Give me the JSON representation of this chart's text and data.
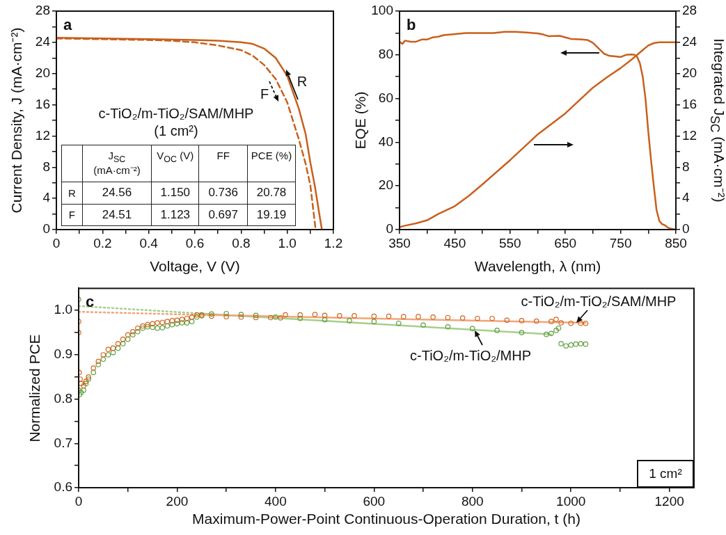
{
  "chart_data": [
    {
      "type": "line",
      "title": "a",
      "xlabel": "Voltage, V (V)",
      "ylabel": "Current Density, J (mA·cm⁻²)",
      "xlim": [
        0,
        1.2
      ],
      "xticks": [
        0,
        {
          "value": 0.1,
          "label": null
        },
        0.2,
        {
          "value": 0.3,
          "label": null
        },
        0.4,
        {
          "value": 0.5,
          "label": null
        },
        0.6,
        {
          "value": 0.7,
          "label": null
        },
        0.8,
        {
          "value": 0.9,
          "label": null
        },
        {
          "value": 1,
          "label": "1.0"
        },
        {
          "value": 1.1,
          "label": null
        },
        1.2
      ],
      "ylim": [
        0,
        28
      ],
      "yticks": [
        0,
        {
          "value": 2,
          "label": null
        },
        4,
        {
          "value": 6,
          "label": null
        },
        8,
        {
          "value": 10,
          "label": null
        },
        12,
        {
          "value": 14,
          "label": null
        },
        16,
        {
          "value": 18,
          "label": null
        },
        20,
        {
          "value": 22,
          "label": null
        },
        24,
        {
          "value": 26,
          "label": null
        },
        28
      ],
      "marker": "none",
      "annotations": [
        "c-TiO₂/m-TiO₂/SAM/MHP",
        "(1 cm²)",
        "J$_{SC}$ (mA·cm⁻²)",
        "V$_{OC}$ (V)",
        "FF",
        "PCE (%)",
        "R",
        "24.56",
        "1.150",
        "0.736",
        "20.78",
        "F",
        "24.51",
        "1.123",
        "0.697",
        "19.19"
      ],
      "series": [
        {
          "name": "R",
          "color": "#c8601c",
          "line_style": "solid",
          "x": [
            0,
            0.2,
            0.4,
            0.6,
            0.7,
            0.8,
            0.85,
            0.9,
            0.95,
            1.0,
            1.05,
            1.08,
            1.1,
            1.12,
            1.14,
            1.15
          ],
          "values": [
            24.6,
            24.5,
            24.4,
            24.3,
            24.2,
            24.0,
            23.8,
            23.2,
            22.0,
            19.7,
            15.5,
            12.2,
            8.6,
            5.5,
            1.8,
            0
          ]
        },
        {
          "name": "F",
          "color": "#c8601c",
          "line_style": "dashed",
          "x": [
            0,
            0.2,
            0.4,
            0.5,
            0.6,
            0.7,
            0.8,
            0.85,
            0.9,
            0.95,
            1.0,
            1.05,
            1.08,
            1.1,
            1.123
          ],
          "values": [
            24.5,
            24.4,
            24.3,
            24.2,
            24.0,
            23.6,
            23.0,
            22.3,
            21.1,
            19.3,
            16.3,
            11.6,
            8.4,
            5.7,
            0
          ]
        }
      ]
    },
    {
      "type": "line",
      "title": "b",
      "xlabel": "Wavelength, λ (nm)",
      "ylabel": "EQE (%)",
      "y2label": "Integrated J$_{SC}$ (mA·cm⁻²)",
      "xlim": [
        350,
        850
      ],
      "xticks": [
        350,
        {
          "value": 400,
          "label": null
        },
        450,
        {
          "value": 500,
          "label": null
        },
        550,
        {
          "value": 600,
          "label": null
        },
        650,
        {
          "value": 700,
          "label": null
        },
        750,
        {
          "value": 800,
          "label": null
        },
        850
      ],
      "ylim": [
        0,
        100
      ],
      "yticks": [
        0,
        {
          "value": 10,
          "label": null
        },
        20,
        {
          "value": 30,
          "label": null
        },
        40,
        {
          "value": 50,
          "label": null
        },
        60,
        {
          "value": 70,
          "label": null
        },
        80,
        {
          "value": 90,
          "label": null
        },
        100
      ],
      "y2lim": [
        0,
        28
      ],
      "y2ticks": [
        0,
        {
          "value": 2,
          "label": null
        },
        4,
        {
          "value": 6,
          "label": null
        },
        8,
        {
          "value": 10,
          "label": null
        },
        12,
        {
          "value": 14,
          "label": null
        },
        16,
        {
          "value": 18,
          "label": null
        },
        20,
        {
          "value": 22,
          "label": null
        },
        24,
        {
          "value": 26,
          "label": null
        },
        28
      ],
      "marker": "none",
      "series": [
        {
          "color": "#c8601c",
          "x": [
            350,
            355,
            360,
            370,
            380,
            390,
            400,
            410,
            420,
            430,
            450,
            470,
            500,
            520,
            540,
            560,
            580,
            600,
            610,
            620,
            640,
            650,
            660,
            680,
            690,
            700,
            710,
            720,
            730,
            740,
            750,
            760,
            770,
            775,
            780,
            785,
            790,
            795,
            800,
            805,
            810,
            815,
            820,
            825,
            830,
            835,
            840,
            850
          ],
          "values": [
            86,
            85,
            86.5,
            86,
            86,
            87,
            87,
            88,
            88.3,
            89,
            89.5,
            90,
            90,
            90,
            90.5,
            90.5,
            90.2,
            89.8,
            89.3,
            88.5,
            88.7,
            88,
            87.3,
            87,
            86.8,
            85.5,
            83,
            80.5,
            79.5,
            79.3,
            79,
            80,
            80.2,
            80,
            79,
            76,
            70,
            60,
            45,
            32,
            20,
            9,
            4,
            2.5,
            2,
            1,
            0.5,
            0
          ]
        },
        {
          "color": "#c8601c",
          "axis": "y2",
          "x": [
            350,
            360,
            380,
            400,
            420,
            450,
            475,
            500,
            550,
            600,
            650,
            700,
            725,
            750,
            770,
            790,
            800,
            810,
            820,
            850
          ],
          "values": [
            0.3,
            0.5,
            0.8,
            1.2,
            2,
            3,
            4.3,
            5.8,
            8.9,
            12.2,
            14.9,
            18.2,
            19.5,
            20.7,
            21.8,
            23.0,
            23.6,
            23.9,
            24,
            24
          ]
        }
      ]
    },
    {
      "type": "scatter",
      "title": "c",
      "xlabel": "Maximum-Power-Point Continuous-Operation Duration, t (h)",
      "ylabel": "Normalized PCE",
      "xlim": [
        0,
        1250
      ],
      "xticks": [
        0,
        {
          "value": 100,
          "label": null
        },
        200,
        {
          "value": 300,
          "label": null
        },
        400,
        {
          "value": 500,
          "label": null
        },
        600,
        {
          "value": 700,
          "label": null
        },
        800,
        {
          "value": 900,
          "label": null
        },
        1000,
        {
          "value": 1100,
          "label": null
        },
        1200
      ],
      "ylim": [
        0.6,
        1.05
      ],
      "yticks": [
        0.6,
        {
          "value": 0.65,
          "label": null
        },
        0.7,
        {
          "value": 0.75,
          "label": null
        },
        0.8,
        {
          "value": 0.85,
          "label": null
        },
        0.9,
        {
          "value": 0.95,
          "label": null
        },
        {
          "value": 1,
          "label": "1.0"
        }
      ],
      "marker": "circle",
      "annotations": [
        "1 cm²"
      ],
      "series": [
        {
          "name": "c-TiO₂/m-TiO₂/SAM/MHP",
          "color": "#d0651f",
          "x": [
            0,
            0,
            1,
            3,
            5,
            10,
            15,
            20,
            30,
            40,
            50,
            60,
            70,
            80,
            90,
            100,
            110,
            120,
            130,
            140,
            150,
            160,
            170,
            180,
            190,
            200,
            210,
            220,
            230,
            240,
            250,
            270,
            300,
            330,
            360,
            390,
            410,
            420,
            450,
            480,
            500,
            530,
            560,
            600,
            630,
            660,
            690,
            720,
            750,
            780,
            810,
            840,
            870,
            900,
            930,
            960,
            970,
            980,
            1000,
            1020,
            1030
          ],
          "values": [
            0.95,
            0.975,
            0.86,
            0.845,
            0.835,
            0.83,
            0.84,
            0.85,
            0.87,
            0.885,
            0.9,
            0.912,
            0.915,
            0.925,
            0.935,
            0.945,
            0.952,
            0.96,
            0.965,
            0.968,
            0.97,
            0.972,
            0.973,
            0.975,
            0.977,
            0.978,
            0.98,
            0.982,
            0.985,
            0.99,
            0.988,
            0.987,
            0.986,
            0.985,
            0.984,
            0.984,
            0.983,
            0.99,
            0.99,
            0.991,
            0.989,
            0.988,
            0.988,
            0.987,
            0.987,
            0.986,
            0.986,
            0.985,
            0.984,
            0.983,
            0.982,
            0.982,
            0.978,
            0.977,
            0.976,
            0.975,
            0.98,
            0.972,
            0.971,
            0.971,
            0.971
          ]
        },
        {
          "name": "c-TiO₂/m-TiO₂/MHP",
          "color": "#5e9e3e",
          "x": [
            0,
            0,
            2,
            5,
            10,
            15,
            20,
            30,
            40,
            50,
            60,
            70,
            80,
            90,
            100,
            110,
            120,
            130,
            140,
            150,
            160,
            170,
            180,
            190,
            200,
            210,
            220,
            230,
            240,
            250,
            270,
            300,
            330,
            360,
            400,
            450,
            500,
            550,
            600,
            650,
            700,
            750,
            800,
            850,
            900,
            950,
            960,
            970,
            975,
            980,
            990,
            1000,
            1010,
            1020,
            1030
          ],
          "values": [
            1.025,
            0.82,
            0.81,
            0.815,
            0.82,
            0.835,
            0.845,
            0.86,
            0.878,
            0.89,
            0.9,
            0.905,
            0.915,
            0.925,
            0.935,
            0.945,
            0.952,
            0.96,
            0.963,
            0.962,
            0.96,
            0.961,
            0.965,
            0.968,
            0.97,
            0.972,
            0.972,
            0.975,
            0.985,
            0.99,
            0.992,
            0.993,
            0.991,
            0.989,
            0.985,
            0.982,
            0.979,
            0.977,
            0.975,
            0.971,
            0.967,
            0.963,
            0.959,
            0.955,
            0.95,
            0.946,
            0.948,
            0.955,
            0.96,
            0.925,
            0.92,
            0.922,
            0.924,
            0.925,
            0.924
          ]
        },
        {
          "type": "line",
          "marker": "none",
          "line_style": "dotted",
          "color": "#f2a577",
          "x": [
            0,
            250
          ],
          "values": [
            0.997,
            0.99
          ]
        },
        {
          "type": "line",
          "marker": "none",
          "line_style": "solid",
          "color": "#f2a577",
          "x": [
            250,
            1030
          ],
          "values": [
            0.99,
            0.972
          ]
        },
        {
          "type": "line",
          "marker": "none",
          "line_style": "dotted",
          "color": "#a5cf8b",
          "x": [
            0,
            250
          ],
          "values": [
            1.01,
            0.993
          ]
        },
        {
          "type": "line",
          "marker": "none",
          "line_style": "solid",
          "color": "#a5cf8b",
          "x": [
            250,
            960
          ],
          "values": [
            0.993,
            0.946
          ]
        }
      ]
    }
  ]
}
